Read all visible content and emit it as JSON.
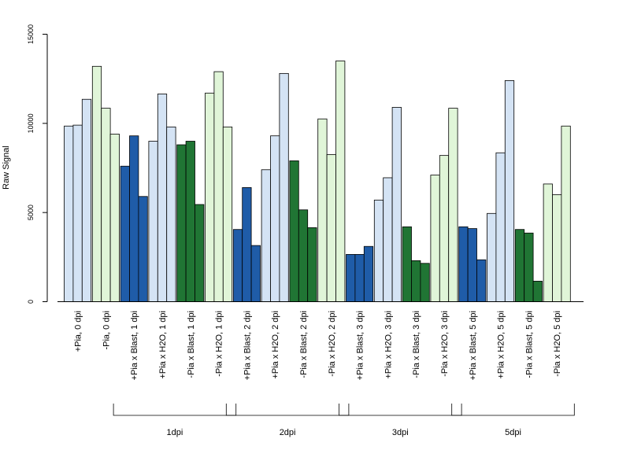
{
  "chart_data": {
    "type": "bar",
    "ylabel": "Raw Signal",
    "ylim": [
      0,
      15000
    ],
    "yticks": [
      "0",
      "5000",
      "10000",
      "15000"
    ],
    "categories": [
      "+Pia, 0 dpi",
      "-Pia, 0 dpi",
      "+Pia x Blast, 1 dpi",
      "+Pia x H2O, 1 dpi",
      "-Pia x Blast, 1 dpi",
      "-Pia x H2O, 1 dpi",
      "+Pia x Blast, 2 dpi",
      "+Pia x H2O, 2 dpi",
      "-Pia x Blast, 2 dpi",
      "-Pia x H2O, 2 dpi",
      "+Pia x Blast, 3 dpi",
      "+Pia x H2O, 3 dpi",
      "-Pia x Blast, 3 dpi",
      "-Pia x H2O, 3 dpi",
      "+Pia x Blast, 5 dpi",
      "+Pia x H2O, 5 dpi",
      "-Pia x Blast, 5 dpi",
      "-Pia x H2O, 5 dpi"
    ],
    "colors": [
      "#d4e3f4",
      "#e0f5d8",
      "#1f5ca8",
      "#d4e3f4",
      "#207534",
      "#e0f5d8",
      "#1f5ca8",
      "#d4e3f4",
      "#207534",
      "#e0f5d8",
      "#1f5ca8",
      "#d4e3f4",
      "#207534",
      "#e0f5d8",
      "#1f5ca8",
      "#d4e3f4",
      "#207534",
      "#e0f5d8"
    ],
    "values": [
      [
        9850,
        9900,
        11350
      ],
      [
        13200,
        10850,
        9400
      ],
      [
        7600,
        9300,
        5900
      ],
      [
        9000,
        11650,
        9800
      ],
      [
        8800,
        9000,
        5450
      ],
      [
        11700,
        12900,
        9800
      ],
      [
        4050,
        6400,
        3150
      ],
      [
        7400,
        9300,
        12800
      ],
      [
        7900,
        5150,
        4150
      ],
      [
        10250,
        8250,
        13500
      ],
      [
        2650,
        2650,
        3100
      ],
      [
        5700,
        6950,
        10900
      ],
      [
        4200,
        2300,
        2150
      ],
      [
        7100,
        8200,
        10850
      ],
      [
        4200,
        4100,
        2350
      ],
      [
        4950,
        8350,
        12400
      ],
      [
        4050,
        3850,
        1150
      ],
      [
        6600,
        6000,
        9850
      ]
    ],
    "groups": [
      {
        "label": "1dpi",
        "from": 2,
        "to": 5
      },
      {
        "label": "2dpi",
        "from": 6,
        "to": 9
      },
      {
        "label": "3dpi",
        "from": 10,
        "to": 13
      },
      {
        "label": "5dpi",
        "from": 14,
        "to": 17
      }
    ]
  }
}
